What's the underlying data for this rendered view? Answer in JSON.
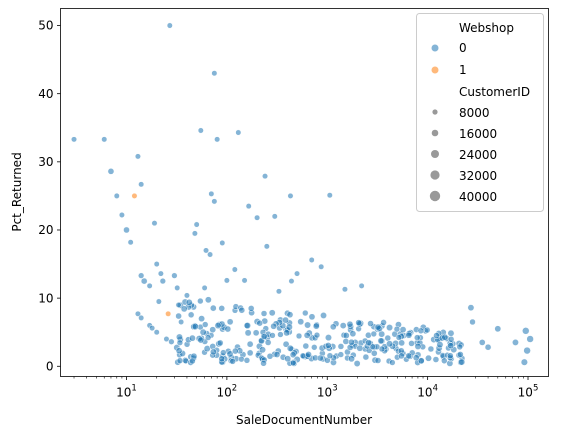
{
  "chart_data": {
    "type": "scatter",
    "xlabel": "SaleDocumentNumber",
    "ylabel": "Pct_Returned",
    "x_scale": "log",
    "xlim": [
      2.2,
      160000
    ],
    "ylim": [
      -1.5,
      52.5
    ],
    "x_major_ticks": [
      10,
      100,
      1000,
      10000,
      100000
    ],
    "x_tick_labels": [
      {
        "base": "10",
        "exp": "1"
      },
      {
        "base": "10",
        "exp": "2"
      },
      {
        "base": "10",
        "exp": "3"
      },
      {
        "base": "10",
        "exp": "4"
      },
      {
        "base": "10",
        "exp": "5"
      }
    ],
    "y_ticks": [
      0,
      10,
      20,
      30,
      40,
      50
    ],
    "y_tick_labels": [
      "0",
      "10",
      "20",
      "30",
      "40",
      "50"
    ],
    "grid": false,
    "colors": {
      "webshop_0": "#1f77b4",
      "webshop_1": "#ff7f0e"
    },
    "legend": {
      "placement": "top-right",
      "hue_title": "Webshop",
      "hue_entries": [
        {
          "label": "0",
          "color": "#1f77b4"
        },
        {
          "label": "1",
          "color": "#ff7f0e"
        }
      ],
      "size_title": "CustomerID",
      "size_entries": [
        {
          "label": "8000",
          "value": 8000
        },
        {
          "label": "16000",
          "value": 16000
        },
        {
          "label": "24000",
          "value": 24000
        },
        {
          "label": "32000",
          "value": 32000
        },
        {
          "label": "40000",
          "value": 40000
        }
      ]
    },
    "series": [
      {
        "name": "0",
        "points": [
          [
            3,
            33.3,
            500
          ],
          [
            6,
            33.3,
            500
          ],
          [
            7,
            28.6,
            2000
          ],
          [
            8,
            25,
            500
          ],
          [
            9,
            22.2,
            500
          ],
          [
            10,
            20,
            2000
          ],
          [
            11,
            18.2,
            500
          ],
          [
            13,
            30.8,
            500
          ],
          [
            14,
            26.7,
            500
          ],
          [
            14,
            13.3,
            1000
          ],
          [
            15,
            12.5,
            2000
          ],
          [
            17,
            11.8,
            500
          ],
          [
            19,
            21,
            500
          ],
          [
            20,
            15,
            500
          ],
          [
            13,
            7.7,
            500
          ],
          [
            14,
            7.1,
            500
          ],
          [
            17,
            6,
            500
          ],
          [
            18,
            5.6,
            500
          ],
          [
            20,
            5,
            500
          ],
          [
            21,
            9.5,
            500
          ],
          [
            22,
            13.6,
            500
          ],
          [
            23,
            12.5,
            1000
          ],
          [
            25,
            4,
            500
          ],
          [
            28,
            3.6,
            1000
          ],
          [
            30,
            13.3,
            1000
          ],
          [
            32,
            11.5,
            500
          ],
          [
            33,
            9,
            500
          ],
          [
            35,
            6.5,
            500
          ],
          [
            27,
            50,
            500
          ],
          [
            55,
            34.6,
            500
          ],
          [
            70,
            25.3,
            500
          ],
          [
            75,
            43,
            500
          ],
          [
            80,
            33.3,
            500
          ],
          [
            62,
            17,
            500
          ],
          [
            48,
            19.5,
            500
          ],
          [
            130,
            34.3,
            500
          ],
          [
            165,
            23.5,
            500
          ],
          [
            240,
            27.9,
            500
          ],
          [
            430,
            25,
            500
          ],
          [
            1060,
            25.1,
            500
          ],
          [
            75,
            24.2,
            500
          ],
          [
            120,
            14.2,
            500
          ],
          [
            90,
            18.1,
            500
          ],
          [
            50,
            20.8,
            500
          ],
          [
            68,
            16.4,
            500
          ],
          [
            200,
            21.8,
            500
          ],
          [
            300,
            22,
            500
          ],
          [
            250,
            17.6,
            500
          ],
          [
            700,
            15.6,
            500
          ],
          [
            500,
            13.6,
            500
          ],
          [
            2200,
            11.8,
            500
          ],
          [
            870,
            14.6,
            500
          ],
          [
            150,
            12.6,
            500
          ],
          [
            40,
            10.4,
            500
          ],
          [
            60,
            11.5,
            500
          ],
          [
            100,
            12.6,
            500
          ],
          [
            440,
            12.5,
            500
          ],
          [
            1500,
            11.3,
            500
          ],
          [
            330,
            11,
            500
          ],
          [
            27000,
            8.6,
            2500
          ],
          [
            50000,
            5.5,
            2500
          ],
          [
            75000,
            3.5,
            2500
          ],
          [
            95000,
            5.2,
            5000
          ],
          [
            105000,
            4,
            5000
          ],
          [
            98000,
            2.3,
            5000
          ],
          [
            92000,
            0.6,
            3500
          ],
          [
            35000,
            3.5,
            2000
          ],
          [
            40000,
            2.8,
            2000
          ],
          [
            28000,
            6.5,
            1500
          ]
        ]
      },
      {
        "name": "1",
        "points": [
          [
            12,
            25,
            500
          ],
          [
            26,
            7.7,
            500
          ]
        ]
      }
    ],
    "cloud_seed": 7,
    "cloud_count": 330
  }
}
